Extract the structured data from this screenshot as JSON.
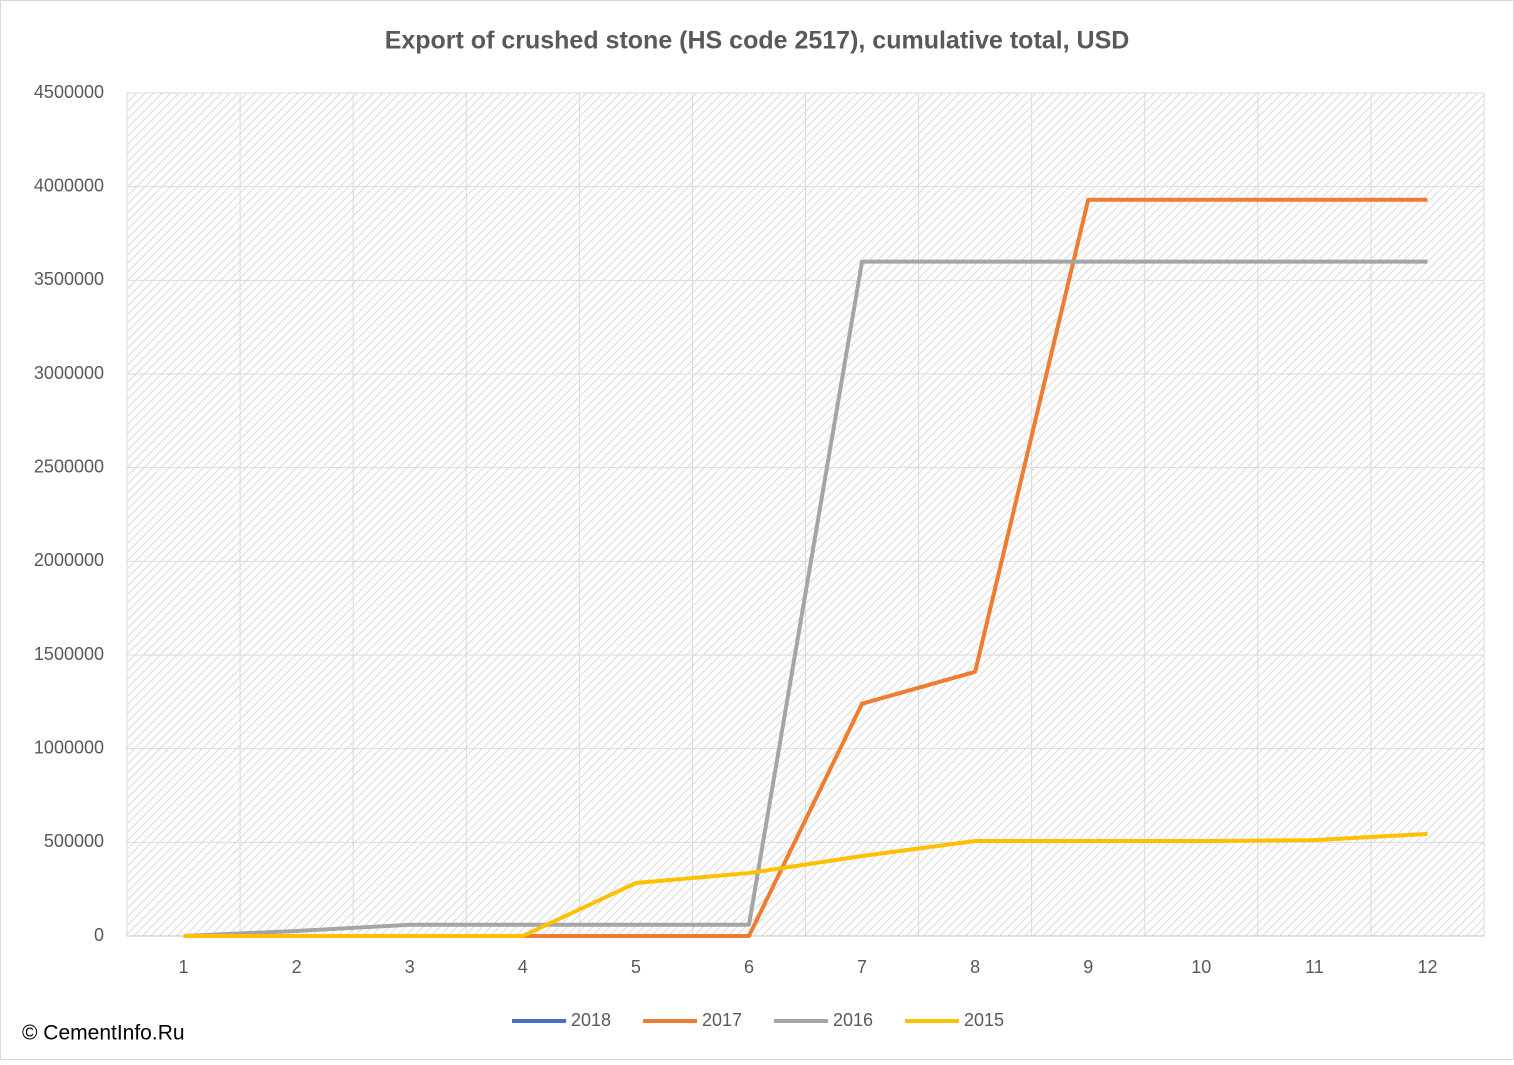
{
  "chart_data": {
    "type": "line",
    "title": "Export of crushed stone (HS code 2517), cumulative total, USD",
    "categories": [
      1,
      2,
      3,
      4,
      5,
      6,
      7,
      8,
      9,
      10,
      11,
      12
    ],
    "series": [
      {
        "name": "2018",
        "color": "#4472c4",
        "values": [
          null,
          null,
          null,
          null,
          null,
          null,
          null,
          null,
          null,
          null,
          null,
          null
        ]
      },
      {
        "name": "2017",
        "color": "#ed7d31",
        "values": [
          0,
          0,
          0,
          0,
          0,
          0,
          1240000,
          1410000,
          3930000,
          3930000,
          3930000,
          3930000
        ]
      },
      {
        "name": "2016",
        "color": "#a5a5a5",
        "values": [
          0,
          27000,
          60000,
          60000,
          60000,
          60000,
          3600000,
          3600000,
          3600000,
          3600000,
          3600000,
          3600000
        ]
      },
      {
        "name": "2015",
        "color": "#ffc000",
        "values": [
          0,
          0,
          0,
          0,
          283000,
          336000,
          427000,
          507000,
          507000,
          507000,
          512000,
          545000
        ]
      }
    ],
    "ylim": [
      0,
      4500000
    ],
    "yticks": [
      0,
      500000,
      1000000,
      1500000,
      2000000,
      2500000,
      3000000,
      3500000,
      4000000,
      4500000
    ],
    "grid": true,
    "legend": "bottom",
    "copyright": "© CementInfo.Ru"
  }
}
